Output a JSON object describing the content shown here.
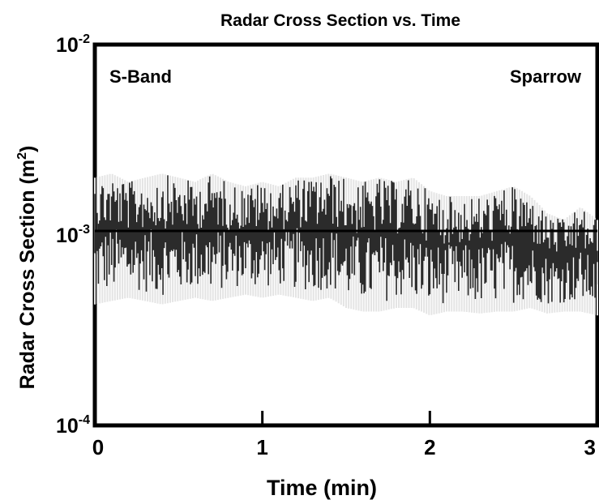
{
  "chart_data": {
    "type": "line",
    "title": "Radar Cross Section vs. Time",
    "xlabel": "Time (min)",
    "ylabel_main": "Radar Cross Section (m",
    "ylabel_sup": "2",
    "ylabel_close": ")",
    "xlim": [
      0,
      3
    ],
    "ylim": [
      0.0001,
      0.01
    ],
    "yscale": "log",
    "x_ticks": [
      {
        "value": 0,
        "label": "0"
      },
      {
        "value": 1,
        "label": "1"
      },
      {
        "value": 2,
        "label": "2"
      },
      {
        "value": 3,
        "label": "3"
      }
    ],
    "y_ticks": [
      {
        "value": 0.01,
        "base": "10",
        "exp": "-2"
      },
      {
        "value": 0.001,
        "base": "10",
        "exp": "-3"
      },
      {
        "value": 0.0001,
        "base": "10",
        "exp": "-4"
      }
    ],
    "annotations": {
      "left": "S-Band",
      "right": "Sparrow"
    },
    "reference_line": {
      "y": 0.00105
    },
    "grid": false,
    "series": [
      {
        "color": "#2b2b2b",
        "envelope": [
          {
            "x": 0.0,
            "low": 0.00048,
            "high": 0.002
          },
          {
            "x": 0.1,
            "low": 0.0005,
            "high": 0.0021
          },
          {
            "x": 0.2,
            "low": 0.00052,
            "high": 0.0019
          },
          {
            "x": 0.3,
            "low": 0.0005,
            "high": 0.002
          },
          {
            "x": 0.4,
            "low": 0.00048,
            "high": 0.0021
          },
          {
            "x": 0.5,
            "low": 0.0005,
            "high": 0.002
          },
          {
            "x": 0.6,
            "low": 0.00052,
            "high": 0.0019
          },
          {
            "x": 0.7,
            "low": 0.0005,
            "high": 0.0021
          },
          {
            "x": 0.8,
            "low": 0.00052,
            "high": 0.0019
          },
          {
            "x": 0.9,
            "low": 0.00054,
            "high": 0.0018
          },
          {
            "x": 1.0,
            "low": 0.00052,
            "high": 0.0019
          },
          {
            "x": 1.1,
            "low": 0.00054,
            "high": 0.0018
          },
          {
            "x": 1.2,
            "low": 0.00052,
            "high": 0.002
          },
          {
            "x": 1.3,
            "low": 0.0005,
            "high": 0.002
          },
          {
            "x": 1.4,
            "low": 0.00052,
            "high": 0.0021
          },
          {
            "x": 1.5,
            "low": 0.00046,
            "high": 0.002
          },
          {
            "x": 1.6,
            "low": 0.00044,
            "high": 0.0019
          },
          {
            "x": 1.7,
            "low": 0.00044,
            "high": 0.002
          },
          {
            "x": 1.8,
            "low": 0.00046,
            "high": 0.0019
          },
          {
            "x": 1.9,
            "low": 0.00046,
            "high": 0.002
          },
          {
            "x": 2.0,
            "low": 0.00042,
            "high": 0.0017
          },
          {
            "x": 2.1,
            "low": 0.00044,
            "high": 0.0016
          },
          {
            "x": 2.2,
            "low": 0.00044,
            "high": 0.0016
          },
          {
            "x": 2.3,
            "low": 0.00043,
            "high": 0.0016
          },
          {
            "x": 2.4,
            "low": 0.00044,
            "high": 0.0017
          },
          {
            "x": 2.5,
            "low": 0.00044,
            "high": 0.0018
          },
          {
            "x": 2.6,
            "low": 0.00046,
            "high": 0.0016
          },
          {
            "x": 2.7,
            "low": 0.00043,
            "high": 0.0013
          },
          {
            "x": 2.8,
            "low": 0.00044,
            "high": 0.0012
          },
          {
            "x": 2.9,
            "low": 0.00044,
            "high": 0.0014
          },
          {
            "x": 3.0,
            "low": 0.00042,
            "high": 0.0012
          }
        ]
      }
    ]
  }
}
